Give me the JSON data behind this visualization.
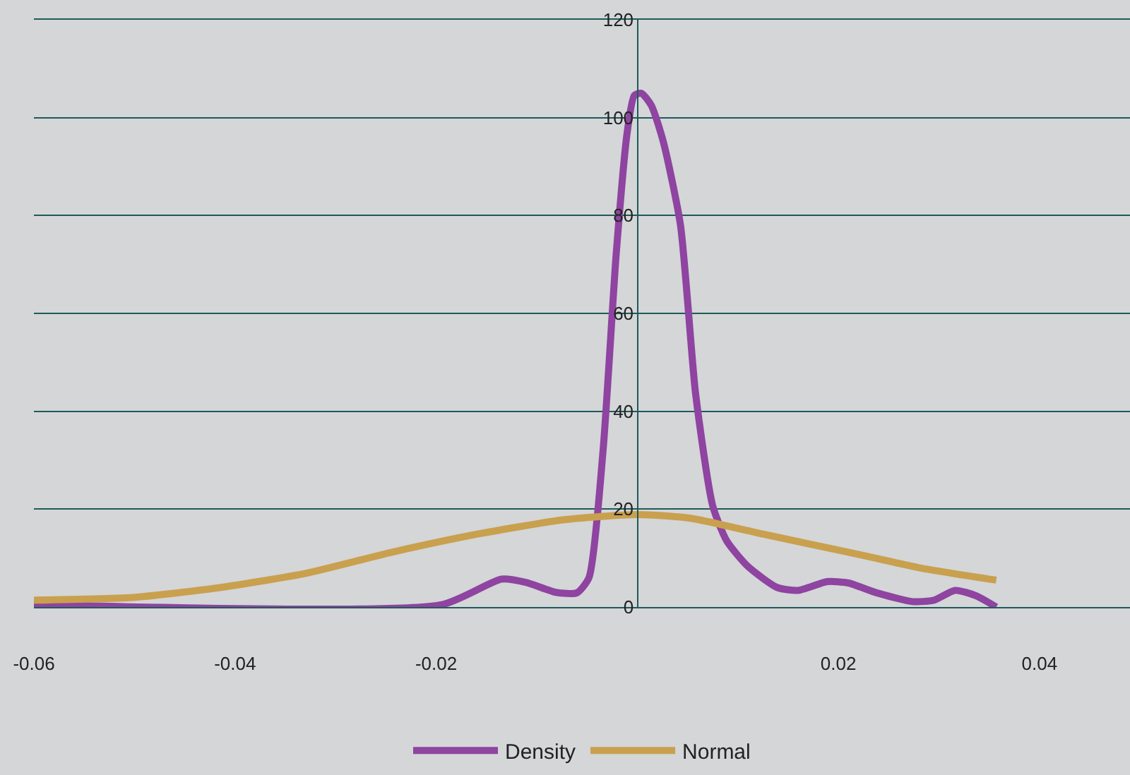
{
  "chart_data": {
    "type": "line",
    "x": [
      -0.06,
      -0.0194,
      -0.0135,
      -0.011,
      -0.0081,
      -0.006,
      -0.0048,
      -0.0034,
      -0.0021,
      -0.001,
      -0.0003,
      0.0004,
      0.0014,
      0.0026,
      0.0043,
      0.0058,
      0.0075,
      0.0089,
      0.011,
      0.0139,
      0.016,
      0.0189,
      0.021,
      0.0238,
      0.0274,
      0.0295,
      0.0316,
      0.0337,
      0.0357
    ],
    "series": [
      {
        "name": "Density",
        "color": "#8e44a0",
        "values": [
          0.5,
          0.5,
          5.7,
          5,
          3,
          2.9,
          6,
          32,
          72,
          97,
          104.5,
          105,
          102.5,
          95,
          78,
          43.6,
          20.7,
          13.5,
          8.3,
          4,
          3.4,
          5.2,
          4.9,
          2.9,
          1.1,
          1.4,
          3.4,
          2.3,
          0
        ]
      },
      {
        "name": "Normal",
        "color": "#c9a04e",
        "x": [
          -0.06,
          -0.0499,
          -0.0414,
          -0.0329,
          -0.0244,
          -0.0159,
          -0.0074,
          0,
          0.0054,
          0.0125,
          0.021,
          0.0281,
          0.0357
        ],
        "values": [
          1.4,
          2,
          4,
          6.9,
          11.2,
          14.9,
          17.8,
          18.9,
          18.1,
          14.9,
          11.2,
          8,
          5.5
        ]
      }
    ],
    "xlim": [
      -0.06,
      0.049
    ],
    "xticks": [
      -0.06,
      -0.04,
      -0.02,
      0.02,
      0.04
    ],
    "ylim": [
      0,
      120
    ],
    "yticks": [
      0,
      20,
      40,
      60,
      80,
      100,
      120
    ],
    "grid": "y",
    "legend": "bottom",
    "marker": "none",
    "line_style": "solid"
  }
}
